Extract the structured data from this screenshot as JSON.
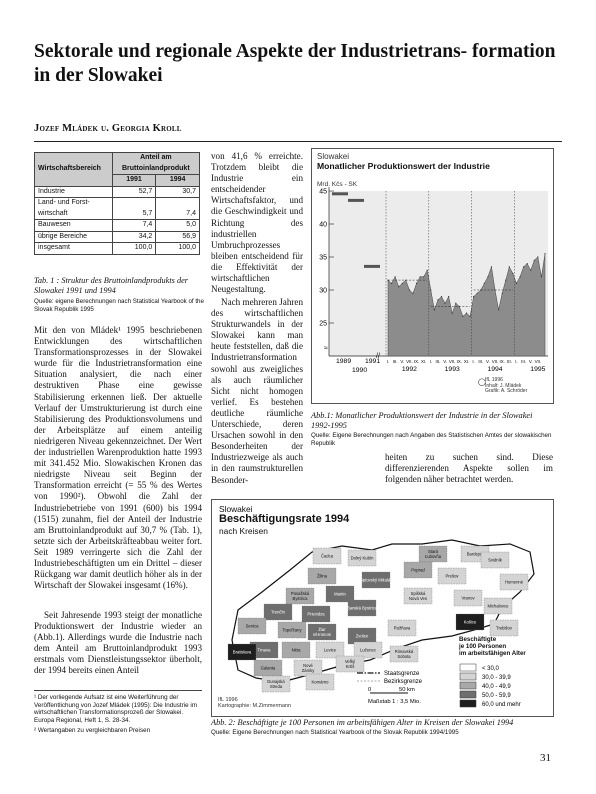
{
  "title": "Sektorale und regionale Aspekte der Industrietrans- formation in der Slowakei",
  "authors": "Jozef Mládek u. Georgia Kroll",
  "table1": {
    "header_col1": "Wirtschaftsbereich",
    "header_group": "Anteil am Bruttoinlandprodukt",
    "years": [
      "1991",
      "1994"
    ],
    "rows": [
      {
        "label": "Industrie",
        "v1991": "52,7",
        "v1994": "30,7"
      },
      {
        "label": "Land- und Forst- wirtschaft",
        "v1991": "5,7",
        "v1994": "7,4"
      },
      {
        "label": "Bauwesen",
        "v1991": "7,4",
        "v1994": "5,0"
      },
      {
        "label": "übrige Bereiche",
        "v1991": "34,2",
        "v1994": "56,9"
      },
      {
        "label": "insgesamt",
        "v1991": "100,0",
        "v1994": "100,0"
      }
    ],
    "caption": "Tab. 1 : Struktur des Bruttoinlandprodukts der Slowakei 1991 und 1994",
    "source": "Quelle: eigene Berechnungen nach Statistical Yearbook of the Slovak Republik 1995"
  },
  "col1_text": "Mit den von Mládek¹ 1995 beschriebenen Entwicklungen des wirtschaftlichen Transformationsprozesses in der Slowakei wurde für die Industrietransformation eine Situation analysiert, die nach einer destruktiven Phase eine gewisse Stabilisierung erkennen ließ. Der aktuelle Verlauf der Umstrukturierung ist durch eine Stabilisierung des Produktionsvolumens und der Arbeitsplätze auf einem anteilig niedrigeren Niveau gekennzeichnet. Der Wert der industriellen Warenproduktion hatte 1993 mit 341.452 Mio. Slowakischen Kronen das niedrigste Niveau seit Beginn der Transformation erreicht (= 55 % des Wertes von 1990²). Obwohl die Zahl der Industriebetriebe von 1991 (600) bis 1994 (1515) zunahm, fiel der Anteil der Industrie am Bruttoinlandprodukt auf 30,7 % (Tab. 1), setzte sich der Arbeitskräfteabbau weiter fort. Seit 1989 verringerte sich die Zahl der Industriebeschäftigten um ein Drittel – dieser Rückgang war damit deutlich höher als in der Wirtschaft der Slowakei insgesamt (16%).",
  "col1_text2": "Seit Jahresende 1993 steigt der monatliche Produktionswert der Industrie wieder an (Abb.1). Allerdings wurde die Industrie nach dem Anteil am Bruttoinlandprodukt 1993 erstmals vom Dienstleistungssektor überholt, der 1994 bereits einen Anteil",
  "col2_text": "von 41,6 % erreichte. Trotzdem bleibt die Industrie ein entscheidender Wirtschaftsfaktor, und die Geschwindigkeit und Richtung des industriellen Umbruchprozesses bleiben entscheidend für die Effektivität der wirtschaftlichen Neugestaltung.",
  "col2_text2": "Nach mehreren Jahren des wirtschaftlichen Strukturwandels in der Slowakei kann man heute feststellen, daß die Industrietransformation sowohl aus zweigliches als auch räumlicher Sicht nicht homogen verlief. Es bestehen deutliche räumliche Unterschiede, deren Ursachen sowohl in den Besonderheiten der Industriezweige als auch in den raumstrukturellen Besonder-",
  "col3_text": "heiten zu suchen sind. Diese differenzierenden Aspekte sollen im folgenden näher betrachtet werden.",
  "chart1": {
    "region": "Slowakei",
    "title": "Monatlicher Produktionswert der Industrie",
    "unit": "Mrd. Kčs - SK",
    "credit1": "IfL 1996",
    "credit2": "Inhalt: J. Mládek",
    "credit3": "Grafik: A. Schröder",
    "caption": "Abb.1: Monatlicher Produktionswert der Industrie in der Slowakei 1992-1995",
    "source": "Quelle: Eigene Berechnungen nach Angaben des Statistischen Amtes der slowakischen Republik"
  },
  "chart_data": {
    "type": "area",
    "ylabel": "Mrd. Kčs - SK",
    "ylim": [
      20,
      45
    ],
    "yticks": [
      25,
      30,
      35,
      40,
      45
    ],
    "annual_levels": [
      {
        "year": "1989",
        "value": 44.5
      },
      {
        "year": "1990",
        "value": 43.5
      },
      {
        "year": "1991",
        "value": 33.5
      }
    ],
    "month_tick_labels": [
      "I.",
      "III.",
      "V.",
      "VII.",
      "IX.",
      "XI.",
      "I.",
      "III.",
      "V.",
      "VII.",
      "IX.",
      "XI.",
      "I.",
      "III.",
      "V.",
      "VII.",
      "IX.",
      "XI.",
      "I.",
      "III.",
      "V.",
      "VII."
    ],
    "year_labels": [
      "1992",
      "1993",
      "1994",
      "1995"
    ],
    "x_axis_years_left": [
      "1989",
      "1990",
      "1991"
    ],
    "series": [
      {
        "values": [
          31.5,
          31,
          32,
          30.5,
          31,
          31.5,
          30,
          29.5,
          31,
          32,
          32,
          33,
          30,
          27,
          28.5,
          29,
          28,
          29,
          26.5,
          28,
          27.5,
          26,
          26.5,
          26,
          29,
          29.5,
          30,
          31,
          32,
          33.5,
          30,
          27,
          29.5,
          31.5,
          33.5,
          32.5,
          31,
          32,
          33.5,
          34,
          33,
          34.5,
          35,
          32,
          35.5
        ]
      }
    ],
    "averages": [
      {
        "year": "1992",
        "value": 31.5
      },
      {
        "year": "1993",
        "value": 27.5
      },
      {
        "year": "1994",
        "value": 30
      }
    ]
  },
  "map": {
    "region": "Slowakei",
    "title": "Beschäftigungsrate 1994",
    "subtitle": "nach Kreisen",
    "districts": [
      {
        "name": "Čadca",
        "class": 1
      },
      {
        "name": "Dolný Kubín",
        "class": 1
      },
      {
        "name": "Stará Ľubovňa",
        "class": 2
      },
      {
        "name": "Bardejov",
        "class": 1
      },
      {
        "name": "Žilina",
        "class": 2
      },
      {
        "name": "Martin",
        "class": 3
      },
      {
        "name": "Liptovský Mikuláš",
        "class": 3
      },
      {
        "name": "Poprad",
        "class": 2
      },
      {
        "name": "Prešov",
        "class": 1
      },
      {
        "name": "Svidník",
        "class": 1
      },
      {
        "name": "Humenné",
        "class": 1
      },
      {
        "name": "Považská Bystrica",
        "class": 2
      },
      {
        "name": "Prievidza",
        "class": 3
      },
      {
        "name": "Banská Bystrica",
        "class": 3
      },
      {
        "name": "Spišská Nová Ves",
        "class": 1
      },
      {
        "name": "Vranov",
        "class": 1
      },
      {
        "name": "Michalovce",
        "class": 1
      },
      {
        "name": "Trenčín",
        "class": 3
      },
      {
        "name": "Žiar n/Hronom",
        "class": 3
      },
      {
        "name": "Rožňava",
        "class": 1
      },
      {
        "name": "Košice",
        "class": 4
      },
      {
        "name": "Trebišov",
        "class": 1
      },
      {
        "name": "Senica",
        "class": 2
      },
      {
        "name": "Trnava",
        "class": 3
      },
      {
        "name": "Topoľčany",
        "class": 2
      },
      {
        "name": "Zvolen",
        "class": 3
      },
      {
        "name": "Lučenec",
        "class": 1
      },
      {
        "name": "Rimavská Sobota",
        "class": 1
      },
      {
        "name": "Nitra",
        "class": 2
      },
      {
        "name": "Bratislava",
        "class": 4
      },
      {
        "name": "Galanta",
        "class": 2
      },
      {
        "name": "Levice",
        "class": 1
      },
      {
        "name": "Veľký Krtíš",
        "class": 1
      },
      {
        "name": "Dunajská Streda",
        "class": 1
      },
      {
        "name": "Nové Zámky",
        "class": 1
      },
      {
        "name": "Komárno",
        "class": 1
      }
    ],
    "legend_title": "Beschäftigte je 100 Personen im arbeitsfähigen Alter",
    "legend_title_lines": [
      "Beschäftigte",
      "je 100 Personen",
      "im arbeitsfähigen Alter"
    ],
    "legend_classes": [
      "< 30,0",
      "30,0 - 39,9",
      "40,0 - 49,9",
      "50,0 - 59,9",
      "60,0 und mehr"
    ],
    "legend_colors": [
      "#ffffff",
      "#d4d4d4",
      "#a8a8a8",
      "#6e6e6e",
      "#1e1e1e"
    ],
    "border_state": "Staatsgrenze",
    "border_district": "Bezirksgrenze",
    "scale_zero": "0",
    "scale_km": "50 km",
    "scale_ratio": "Maßstab 1 : 3,5 Mio.",
    "credit1": "IfL 1996",
    "credit2": "Kartographie: M.Zimmermann",
    "caption": "Abb. 2: Beschäftigte je 100 Personen im arbeitsfähigen Alter in Kreisen der Slowakei 1994",
    "source": "Quelle: Eigene Berechnungen nach Statistical Yearbook of the Slovak Republik 1994/1995"
  },
  "footnotes": [
    "¹ Der vorliegende Aufsatz ist eine Weiterführung der Veröffentlichung von Jozef Mládek (1995): Die Industrie im wirtschaftlichen Transformationsprozeß der Slowakei. Europa Regional, Heft 1, S. 28-34.",
    "² Wertangaben zu vergleichbaren Preisen"
  ],
  "page_number": "31"
}
